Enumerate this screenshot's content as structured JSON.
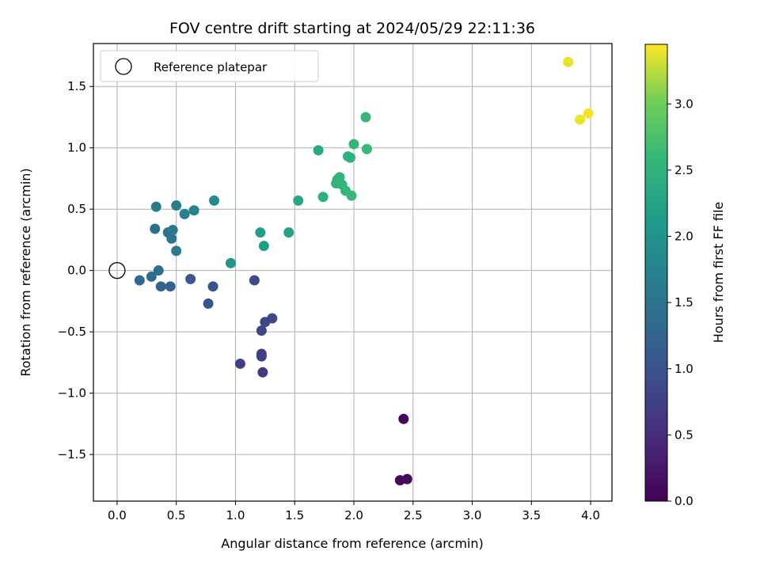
{
  "chart_data": {
    "type": "scatter",
    "title": "FOV centre drift starting at 2024/05/29 22:11:36",
    "xlabel": "Angular distance from reference (arcmin)",
    "ylabel": "Rotation from reference (arcmin)",
    "xlim": [
      -0.2,
      4.18
    ],
    "ylim": [
      -1.88,
      1.85
    ],
    "x_ticks": [
      0.0,
      0.5,
      1.0,
      1.5,
      2.0,
      2.5,
      3.0,
      3.5,
      4.0
    ],
    "y_ticks": [
      -1.5,
      -1.0,
      -0.5,
      0.0,
      0.5,
      1.0,
      1.5
    ],
    "x_tick_labels": [
      "0.0",
      "0.5",
      "1.0",
      "1.5",
      "2.0",
      "2.5",
      "3.0",
      "3.5",
      "4.0"
    ],
    "y_tick_labels": [
      "−1.5",
      "−1.0",
      "−0.5",
      "0.0",
      "0.5",
      "1.0",
      "1.5"
    ],
    "grid": true,
    "legend": {
      "position": "top-left",
      "entries": [
        "Reference platepar"
      ]
    },
    "reference_point": {
      "x": 0.0,
      "y": 0.0
    },
    "colorbar": {
      "label": "Hours from first FF file",
      "range": [
        0.0,
        3.45
      ],
      "ticks": [
        0.0,
        0.5,
        1.0,
        1.5,
        2.0,
        2.5,
        3.0
      ],
      "tick_labels": [
        "0.0",
        "0.5",
        "1.0",
        "1.5",
        "2.0",
        "2.5",
        "3.0"
      ],
      "colormap": "viridis"
    },
    "points": [
      {
        "x": 2.42,
        "y": -1.21,
        "c": 0.05
      },
      {
        "x": 2.39,
        "y": -1.71,
        "c": 0.08
      },
      {
        "x": 2.45,
        "y": -1.7,
        "c": 0.1
      },
      {
        "x": 1.04,
        "y": -0.76,
        "c": 0.75
      },
      {
        "x": 1.22,
        "y": -0.68,
        "c": 0.7
      },
      {
        "x": 1.22,
        "y": -0.7,
        "c": 0.72
      },
      {
        "x": 1.23,
        "y": -0.83,
        "c": 0.68
      },
      {
        "x": 1.22,
        "y": -0.49,
        "c": 0.82
      },
      {
        "x": 1.25,
        "y": -0.42,
        "c": 0.85
      },
      {
        "x": 1.31,
        "y": -0.39,
        "c": 0.88
      },
      {
        "x": 1.16,
        "y": -0.08,
        "c": 0.9
      },
      {
        "x": 0.77,
        "y": -0.27,
        "c": 1.0
      },
      {
        "x": 0.81,
        "y": -0.13,
        "c": 1.05
      },
      {
        "x": 0.62,
        "y": -0.07,
        "c": 1.1
      },
      {
        "x": 0.45,
        "y": -0.13,
        "c": 1.2
      },
      {
        "x": 0.37,
        "y": -0.13,
        "c": 1.25
      },
      {
        "x": 0.19,
        "y": -0.08,
        "c": 1.3
      },
      {
        "x": 0.29,
        "y": -0.05,
        "c": 1.35
      },
      {
        "x": 0.35,
        "y": 0.0,
        "c": 1.4
      },
      {
        "x": 0.32,
        "y": 0.34,
        "c": 1.45
      },
      {
        "x": 0.43,
        "y": 0.31,
        "c": 1.5
      },
      {
        "x": 0.46,
        "y": 0.26,
        "c": 1.55
      },
      {
        "x": 0.47,
        "y": 0.33,
        "c": 1.58
      },
      {
        "x": 0.5,
        "y": 0.16,
        "c": 1.62
      },
      {
        "x": 0.33,
        "y": 0.52,
        "c": 1.6
      },
      {
        "x": 0.5,
        "y": 0.53,
        "c": 1.65
      },
      {
        "x": 0.57,
        "y": 0.46,
        "c": 1.7
      },
      {
        "x": 0.65,
        "y": 0.49,
        "c": 1.75
      },
      {
        "x": 0.82,
        "y": 0.57,
        "c": 1.85
      },
      {
        "x": 0.96,
        "y": 0.06,
        "c": 2.05
      },
      {
        "x": 1.21,
        "y": 0.31,
        "c": 2.2
      },
      {
        "x": 1.24,
        "y": 0.2,
        "c": 2.15
      },
      {
        "x": 1.45,
        "y": 0.31,
        "c": 2.25
      },
      {
        "x": 1.53,
        "y": 0.57,
        "c": 2.3
      },
      {
        "x": 1.7,
        "y": 0.98,
        "c": 2.35
      },
      {
        "x": 1.74,
        "y": 0.6,
        "c": 2.45
      },
      {
        "x": 1.85,
        "y": 0.71,
        "c": 2.5
      },
      {
        "x": 1.86,
        "y": 0.74,
        "c": 2.5
      },
      {
        "x": 1.88,
        "y": 0.76,
        "c": 2.52
      },
      {
        "x": 1.9,
        "y": 0.7,
        "c": 2.55
      },
      {
        "x": 1.93,
        "y": 0.65,
        "c": 2.55
      },
      {
        "x": 1.95,
        "y": 0.93,
        "c": 2.48
      },
      {
        "x": 1.97,
        "y": 0.92,
        "c": 2.5
      },
      {
        "x": 1.98,
        "y": 0.61,
        "c": 2.6
      },
      {
        "x": 2.0,
        "y": 1.03,
        "c": 2.55
      },
      {
        "x": 2.11,
        "y": 0.99,
        "c": 2.6
      },
      {
        "x": 2.1,
        "y": 1.25,
        "c": 2.6
      },
      {
        "x": 3.81,
        "y": 1.7,
        "c": 3.38
      },
      {
        "x": 3.91,
        "y": 1.23,
        "c": 3.4
      },
      {
        "x": 3.98,
        "y": 1.28,
        "c": 3.42
      }
    ]
  }
}
